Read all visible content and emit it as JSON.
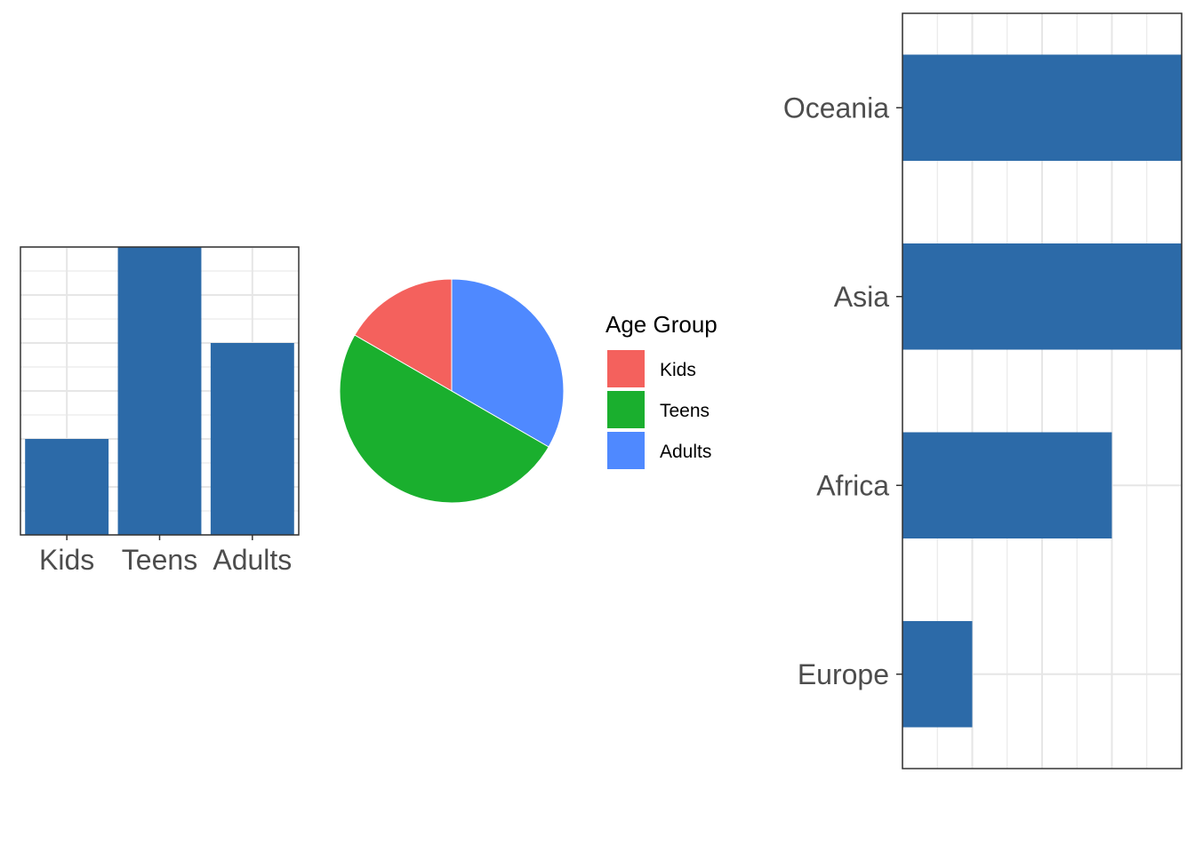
{
  "colors": {
    "bar_fill": "#2C6AA8",
    "grid": "#E6E6E6",
    "panel_border": "#333333",
    "tick_text": "#4D4D4D",
    "kids": "#F4615D",
    "teens": "#1AAF2E",
    "adults": "#4F89FF"
  },
  "chart_data": [
    {
      "type": "bar",
      "orientation": "vertical",
      "categories": [
        "Kids",
        "Teens",
        "Adults"
      ],
      "values": [
        2,
        6,
        4
      ],
      "xlabel": "",
      "ylabel": "",
      "ylim": [
        0,
        6
      ],
      "grid": true,
      "y_tick_labels_shown": false
    },
    {
      "type": "pie",
      "categories": [
        "Kids",
        "Teens",
        "Adults"
      ],
      "values": [
        2,
        6,
        4
      ],
      "legend": {
        "title": "Age Group",
        "position": "right",
        "entries": [
          "Kids",
          "Teens",
          "Adults"
        ]
      }
    },
    {
      "type": "bar",
      "orientation": "horizontal",
      "categories": [
        "Europe",
        "Africa",
        "Asia",
        "Oceania"
      ],
      "values": [
        1,
        3,
        4,
        4
      ],
      "xlabel": "",
      "ylabel": "",
      "xlim": [
        0,
        4
      ],
      "grid": true,
      "x_tick_labels_shown": false
    }
  ]
}
